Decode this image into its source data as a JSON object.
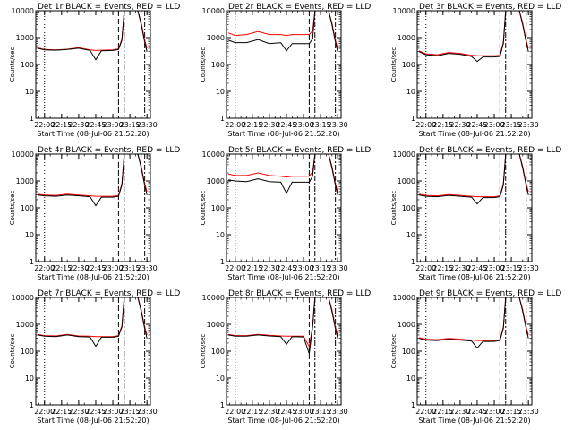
{
  "page": {
    "shared_xlabel": "Start Time (08-Jul-06 21:52:20)",
    "shared_ylabel": "Counts/sec",
    "x_ticks": [
      "22:00",
      "22:15",
      "22:30",
      "22:45",
      "23:00",
      "23:15",
      "23:30"
    ],
    "y_ticks": [
      "1",
      "10",
      "100",
      "1000",
      "10000"
    ],
    "colors": {
      "events": "#000000",
      "lld": "#ff0000"
    }
  },
  "chart_data": [
    {
      "type": "line",
      "title": "Det 1r BLACK = Events, RED = LLD",
      "x": [
        "21:54",
        "22:00",
        "22:10",
        "22:20",
        "22:30",
        "22:40",
        "22:45",
        "22:50",
        "23:00",
        "23:05",
        "23:08",
        "23:10",
        "23:12",
        "23:22",
        "23:25",
        "23:28",
        "23:30"
      ],
      "series": [
        {
          "name": "Events",
          "values": [
            400,
            350,
            340,
            360,
            400,
            330,
            150,
            320,
            330,
            360,
            800,
            10000,
            10000,
            10000,
            3000,
            700,
            300
          ]
        },
        {
          "name": "LLD",
          "values": [
            420,
            360,
            350,
            370,
            420,
            350,
            330,
            340,
            350,
            380,
            900,
            10000,
            10000,
            10000,
            3500,
            800,
            400
          ]
        }
      ],
      "xlim": [
        "21:52:20",
        "23:33"
      ],
      "ylim": [
        1,
        10000
      ],
      "yscale": "log"
    },
    {
      "type": "line",
      "title": "Det 2r BLACK = Events, RED = LLD",
      "x": [
        "21:54",
        "22:00",
        "22:10",
        "22:20",
        "22:30",
        "22:40",
        "22:45",
        "22:50",
        "23:00",
        "23:05",
        "23:08",
        "23:10",
        "23:12",
        "23:22",
        "23:25",
        "23:28",
        "23:30"
      ],
      "series": [
        {
          "name": "Events",
          "values": [
            800,
            650,
            650,
            850,
            600,
            650,
            320,
            600,
            600,
            600,
            900,
            10000,
            10000,
            10000,
            3000,
            700,
            300
          ]
        },
        {
          "name": "LLD",
          "values": [
            1500,
            1200,
            1300,
            1700,
            1300,
            1300,
            1200,
            1300,
            1300,
            1300,
            1800,
            10000,
            10000,
            10000,
            3500,
            800,
            400
          ]
        }
      ],
      "xlim": [
        "21:52:20",
        "23:33"
      ],
      "ylim": [
        1,
        10000
      ],
      "yscale": "log"
    },
    {
      "type": "line",
      "title": "Det 3r BLACK = Events, RED = LLD",
      "x": [
        "21:54",
        "22:00",
        "22:10",
        "22:20",
        "22:30",
        "22:40",
        "22:45",
        "22:50",
        "23:00",
        "23:05",
        "23:08",
        "23:10",
        "23:12",
        "23:22",
        "23:25",
        "23:28",
        "23:30"
      ],
      "series": [
        {
          "name": "Events",
          "values": [
            300,
            230,
            210,
            260,
            240,
            200,
            130,
            190,
            190,
            200,
            600,
            10000,
            10000,
            10000,
            3000,
            700,
            300
          ]
        },
        {
          "name": "LLD",
          "values": [
            320,
            250,
            230,
            280,
            260,
            220,
            210,
            210,
            210,
            220,
            700,
            10000,
            10000,
            10000,
            3500,
            800,
            400
          ]
        }
      ],
      "xlim": [
        "21:52:20",
        "23:33"
      ],
      "ylim": [
        1,
        10000
      ],
      "yscale": "log"
    },
    {
      "type": "line",
      "title": "Det 4r BLACK = Events, RED = LLD",
      "x": [
        "21:54",
        "22:00",
        "22:10",
        "22:20",
        "22:30",
        "22:40",
        "22:45",
        "22:50",
        "23:00",
        "23:05",
        "23:08",
        "23:10",
        "23:12",
        "23:22",
        "23:25",
        "23:28",
        "23:30"
      ],
      "series": [
        {
          "name": "Events",
          "values": [
            300,
            280,
            270,
            300,
            280,
            260,
            120,
            250,
            250,
            270,
            700,
            10000,
            10000,
            10000,
            3000,
            700,
            300
          ]
        },
        {
          "name": "LLD",
          "values": [
            320,
            300,
            290,
            320,
            300,
            280,
            270,
            270,
            270,
            290,
            800,
            10000,
            10000,
            10000,
            3500,
            800,
            400
          ]
        }
      ],
      "xlim": [
        "21:52:20",
        "23:33"
      ],
      "ylim": [
        1,
        10000
      ],
      "yscale": "log"
    },
    {
      "type": "line",
      "title": "Det 5r BLACK = Events, RED = LLD",
      "x": [
        "21:54",
        "22:00",
        "22:10",
        "22:20",
        "22:30",
        "22:40",
        "22:45",
        "22:50",
        "23:00",
        "23:05",
        "23:08",
        "23:10",
        "23:12",
        "23:22",
        "23:25",
        "23:28",
        "23:30"
      ],
      "series": [
        {
          "name": "Events",
          "values": [
            1100,
            1000,
            950,
            1200,
            950,
            900,
            350,
            900,
            900,
            900,
            1500,
            10000,
            10000,
            10000,
            3000,
            700,
            300
          ]
        },
        {
          "name": "LLD",
          "values": [
            1800,
            1600,
            1600,
            2000,
            1600,
            1500,
            1400,
            1500,
            1500,
            1500,
            2200,
            10000,
            10000,
            10000,
            3500,
            800,
            400
          ]
        }
      ],
      "xlim": [
        "21:52:20",
        "23:33"
      ],
      "ylim": [
        1,
        10000
      ],
      "yscale": "log"
    },
    {
      "type": "line",
      "title": "Det 6r BLACK = Events, RED = LLD",
      "x": [
        "21:54",
        "22:00",
        "22:10",
        "22:20",
        "22:30",
        "22:40",
        "22:45",
        "22:50",
        "23:00",
        "23:05",
        "23:08",
        "23:10",
        "23:12",
        "23:22",
        "23:25",
        "23:28",
        "23:30"
      ],
      "series": [
        {
          "name": "Events",
          "values": [
            300,
            270,
            260,
            290,
            270,
            250,
            140,
            240,
            240,
            260,
            700,
            10000,
            10000,
            10000,
            3000,
            700,
            300
          ]
        },
        {
          "name": "LLD",
          "values": [
            320,
            290,
            280,
            310,
            290,
            270,
            260,
            260,
            260,
            280,
            800,
            10000,
            10000,
            10000,
            3500,
            800,
            400
          ]
        }
      ],
      "xlim": [
        "21:52:20",
        "23:33"
      ],
      "ylim": [
        1,
        10000
      ],
      "yscale": "log"
    },
    {
      "type": "line",
      "title": "Det 7r BLACK = Events, RED = LLD",
      "x": [
        "21:54",
        "22:00",
        "22:10",
        "22:20",
        "22:30",
        "22:40",
        "22:45",
        "22:50",
        "23:00",
        "23:05",
        "23:08",
        "23:10",
        "23:12",
        "23:22",
        "23:25",
        "23:28",
        "23:30"
      ],
      "series": [
        {
          "name": "Events",
          "values": [
            400,
            360,
            350,
            400,
            350,
            340,
            150,
            330,
            330,
            360,
            800,
            10000,
            10000,
            10000,
            3000,
            700,
            300
          ]
        },
        {
          "name": "LLD",
          "values": [
            420,
            380,
            370,
            420,
            370,
            360,
            350,
            350,
            350,
            380,
            900,
            10000,
            10000,
            10000,
            3500,
            800,
            400
          ]
        }
      ],
      "xlim": [
        "21:52:20",
        "23:33"
      ],
      "ylim": [
        1,
        10000
      ],
      "yscale": "log"
    },
    {
      "type": "line",
      "title": "Det 8r BLACK = Events, RED = LLD",
      "x": [
        "21:54",
        "22:00",
        "22:10",
        "22:20",
        "22:30",
        "22:40",
        "22:45",
        "22:50",
        "23:00",
        "23:05",
        "23:08",
        "23:10",
        "23:12",
        "23:22",
        "23:25",
        "23:28",
        "23:30"
      ],
      "series": [
        {
          "name": "Events",
          "values": [
            400,
            360,
            360,
            400,
            370,
            350,
            180,
            350,
            340,
            80,
            800,
            10000,
            10000,
            10000,
            3000,
            700,
            300
          ]
        },
        {
          "name": "LLD",
          "values": [
            420,
            380,
            380,
            420,
            390,
            370,
            360,
            360,
            360,
            150,
            900,
            10000,
            10000,
            10000,
            3500,
            800,
            400
          ]
        }
      ],
      "xlim": [
        "21:52:20",
        "23:33"
      ],
      "ylim": [
        1,
        10000
      ],
      "yscale": "log"
    },
    {
      "type": "line",
      "title": "Det 9r BLACK = Events, RED = LLD",
      "x": [
        "21:54",
        "22:00",
        "22:10",
        "22:20",
        "22:30",
        "22:40",
        "22:45",
        "22:50",
        "23:00",
        "23:05",
        "23:08",
        "23:10",
        "23:12",
        "23:22",
        "23:25",
        "23:28",
        "23:30"
      ],
      "series": [
        {
          "name": "Events",
          "values": [
            300,
            260,
            250,
            280,
            260,
            240,
            130,
            230,
            230,
            250,
            700,
            10000,
            10000,
            10000,
            3000,
            700,
            300
          ]
        },
        {
          "name": "LLD",
          "values": [
            320,
            280,
            270,
            300,
            280,
            260,
            250,
            250,
            250,
            270,
            800,
            10000,
            10000,
            10000,
            3500,
            800,
            400
          ]
        }
      ],
      "xlim": [
        "21:52:20",
        "23:33"
      ],
      "ylim": [
        1,
        10000
      ],
      "yscale": "log"
    }
  ]
}
